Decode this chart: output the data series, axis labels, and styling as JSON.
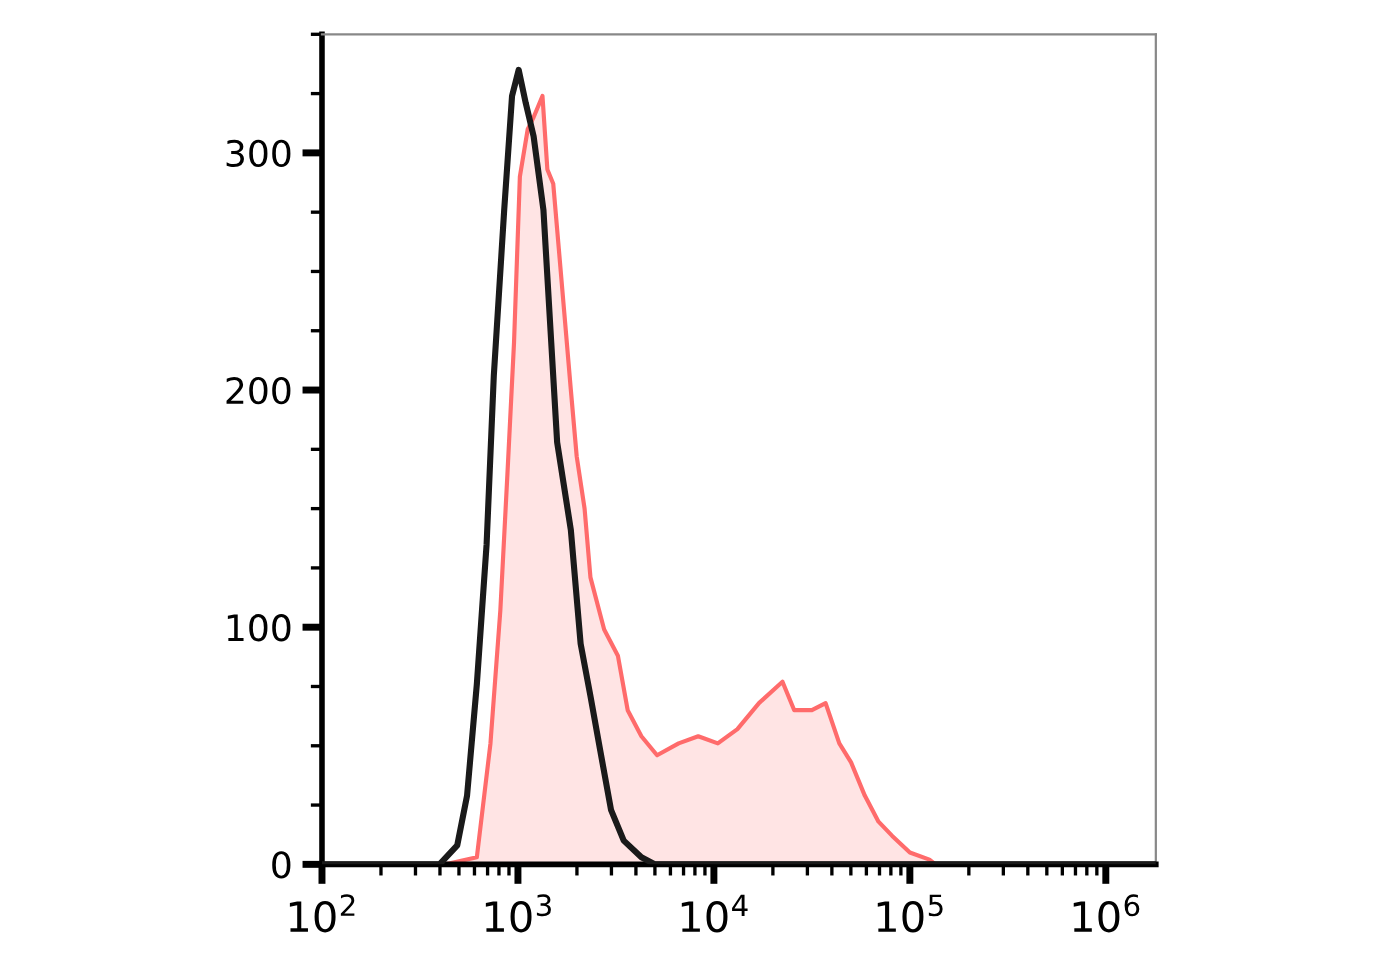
{
  "chart_data": {
    "type": "area",
    "log": "x",
    "xlim": [
      100,
      1800000
    ],
    "xticks": [
      {
        "value": 100,
        "label": "10$^{2}$"
      },
      {
        "value": 1000,
        "label": "10$^{3}$"
      },
      {
        "value": 10000,
        "label": "10$^{4}$"
      },
      {
        "value": 100000,
        "label": "10$^{5}$"
      },
      {
        "value": 1000000,
        "label": "10$^{6}$"
      }
    ],
    "ylim": [
      0,
      350
    ],
    "yticks": [
      0,
      100,
      200,
      300
    ],
    "grid": false,
    "legend": false,
    "series": [
      {
        "color": "#ff6b6b",
        "x": [
          100,
          427,
          617,
          724,
          813,
          883,
          955,
          1023,
          1122,
          1202,
          1334,
          1413,
          1514,
          1718,
          1862,
          1995,
          2188,
          2344,
          2754,
          3236,
          3631,
          4266,
          5129,
          6607,
          8318,
          10471,
          13183,
          16982,
          22387,
          25704,
          31623,
          37154,
          43652,
          50119,
          58884,
          69183,
          81283,
          100000,
          125893,
          134896,
          1800000
        ],
        "values": [
          0,
          0,
          3,
          51,
          107,
          164,
          220,
          290,
          310,
          315,
          324,
          293,
          287,
          234,
          200,
          172,
          150,
          121,
          99,
          88,
          65,
          54,
          46,
          51,
          54,
          51,
          57,
          68,
          77,
          65,
          65,
          68,
          51,
          43,
          29,
          18,
          12,
          5,
          2,
          0,
          0
        ]
      },
      {
        "type": "line",
        "color": "#1a1a1a",
        "x": [
          100,
          398,
          490,
          550,
          617,
          692,
          753,
          851,
          933,
          1009,
          1096,
          1202,
          1349,
          1479,
          1585,
          1862,
          2089,
          2344,
          2630,
          2985,
          3467,
          4266,
          5012,
          1800000
        ],
        "values": [
          0,
          0,
          8,
          29,
          76,
          135,
          206,
          276,
          324,
          335,
          321,
          307,
          276,
          220,
          178,
          141,
          93,
          71,
          48,
          23,
          10,
          3,
          0,
          0
        ]
      }
    ]
  }
}
